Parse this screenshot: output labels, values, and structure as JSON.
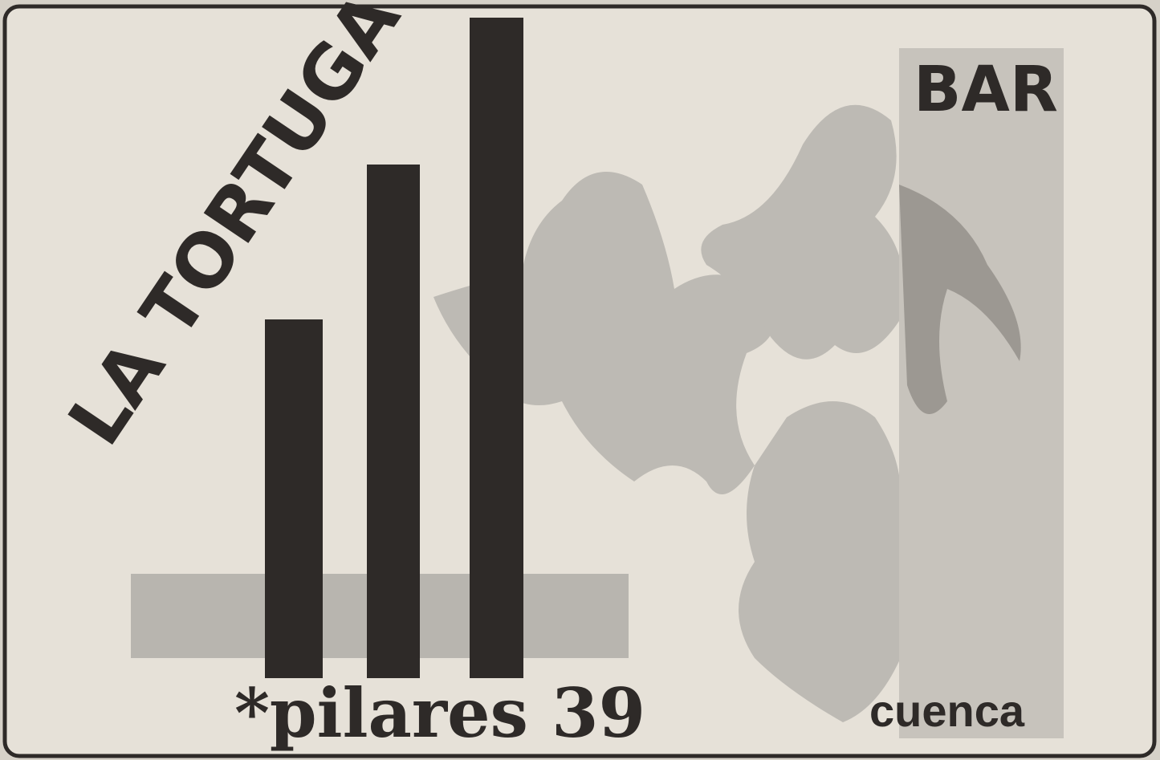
{
  "ad": {
    "name": "LA TORTUGA",
    "kind": "BAR",
    "address": "*pilares 39",
    "city": "cuenca"
  }
}
